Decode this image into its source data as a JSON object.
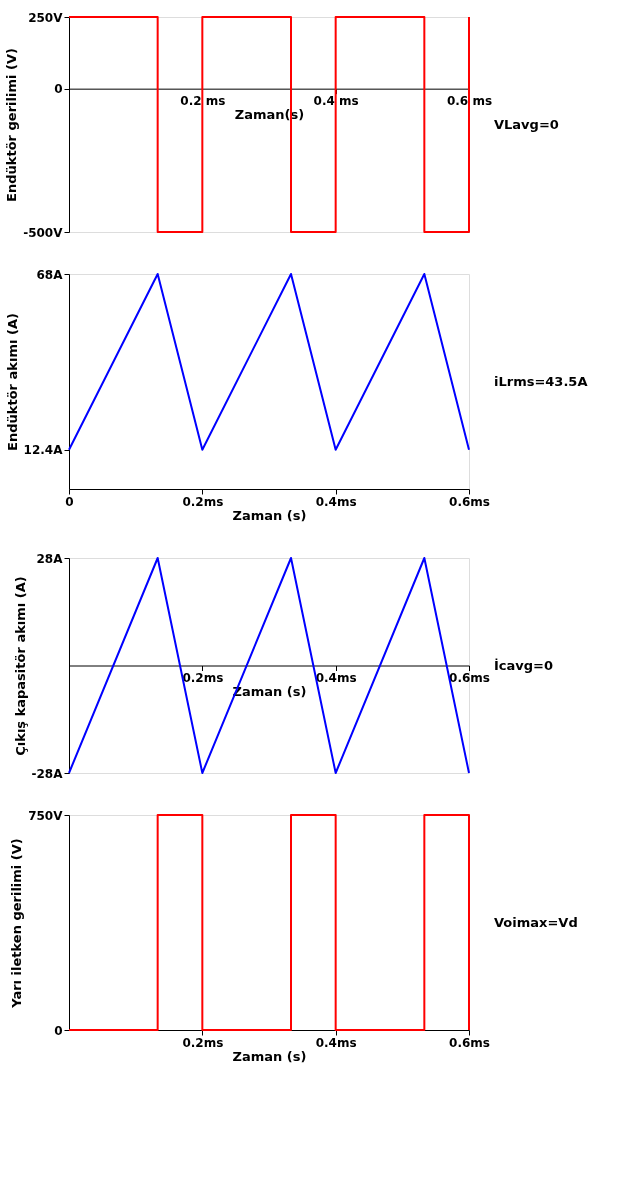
{
  "chart_data": [
    {
      "type": "step",
      "xlabel": "Zaman(s)",
      "ylabel": "Endüktör gerilimi (V)",
      "x": [
        0,
        0.133,
        0.2,
        0.333,
        0.4,
        0.533,
        0.6
      ],
      "series": [
        {
          "color": "#ff0000",
          "values": [
            250,
            -500,
            250,
            -500,
            250,
            -500,
            250
          ]
        }
      ],
      "xlim": [
        0,
        0.6
      ],
      "xticks": [
        {
          "value": 0.2,
          "label": "0.2 ms"
        },
        {
          "value": 0.4,
          "label": "0.4 ms"
        },
        {
          "value": 0.6,
          "label": "0.6 ms"
        }
      ],
      "ylim": [
        -500,
        250
      ],
      "yticks": [
        {
          "value": 250,
          "label": "250V"
        },
        0,
        {
          "value": -500,
          "label": "-500V"
        }
      ],
      "grid": false,
      "annotations": [
        "VLavg=0"
      ]
    },
    {
      "type": "line",
      "xlabel": "Zaman (s)",
      "ylabel": "Endüktör akımı (A)",
      "x": [
        0,
        0.133,
        0.2,
        0.333,
        0.4,
        0.533,
        0.6
      ],
      "series": [
        {
          "color": "#0000ff",
          "values": [
            12.4,
            68,
            12.4,
            68,
            12.4,
            68,
            12.4
          ]
        }
      ],
      "xlim": [
        0,
        0.6
      ],
      "xticks": [
        0,
        {
          "value": 0.2,
          "label": "0.2ms"
        },
        {
          "value": 0.4,
          "label": "0.4ms"
        },
        {
          "value": 0.6,
          "label": "0.6ms"
        }
      ],
      "ylim": [
        0,
        68
      ],
      "yticks": [
        {
          "value": 68,
          "label": "68A"
        },
        {
          "value": 12.4,
          "label": "12.4A"
        }
      ],
      "grid": false,
      "annotations": [
        "iLrms=43.5A"
      ]
    },
    {
      "type": "line",
      "xlabel": "Zaman (s)",
      "ylabel": "Çıkış kapasitör akımı (A)",
      "x": [
        0,
        0.133,
        0.2,
        0.333,
        0.4,
        0.533,
        0.6
      ],
      "series": [
        {
          "color": "#0000ff",
          "values": [
            -28,
            28,
            -28,
            28,
            -28,
            28,
            -28
          ]
        }
      ],
      "xlim": [
        0,
        0.6
      ],
      "xticks": [
        {
          "value": 0.2,
          "label": "0.2ms"
        },
        {
          "value": 0.4,
          "label": "0.4ms"
        },
        {
          "value": 0.6,
          "label": "0.6ms"
        }
      ],
      "ylim": [
        -28,
        28
      ],
      "yticks": [
        {
          "value": 28,
          "label": "28A"
        },
        {
          "value": -28,
          "label": "-28A"
        }
      ],
      "grid": false,
      "annotations": [
        "İcavg=0"
      ]
    },
    {
      "type": "step",
      "xlabel": "Zaman (s)",
      "ylabel": "Yarı iletken gerilimi (V)",
      "x": [
        0,
        0.133,
        0.2,
        0.333,
        0.4,
        0.533,
        0.6
      ],
      "series": [
        {
          "color": "#ff0000",
          "values": [
            0,
            750,
            0,
            750,
            0,
            750,
            0
          ]
        }
      ],
      "xlim": [
        0,
        0.6
      ],
      "xticks": [
        {
          "value": 0.2,
          "label": "0.2ms"
        },
        {
          "value": 0.4,
          "label": "0.4ms"
        },
        {
          "value": 0.6,
          "label": "0.6ms"
        }
      ],
      "ylim": [
        0,
        750
      ],
      "yticks": [
        {
          "value": 750,
          "label": "750V"
        },
        0
      ],
      "grid": false,
      "annotations": [
        "Voimax=Vd"
      ]
    }
  ]
}
